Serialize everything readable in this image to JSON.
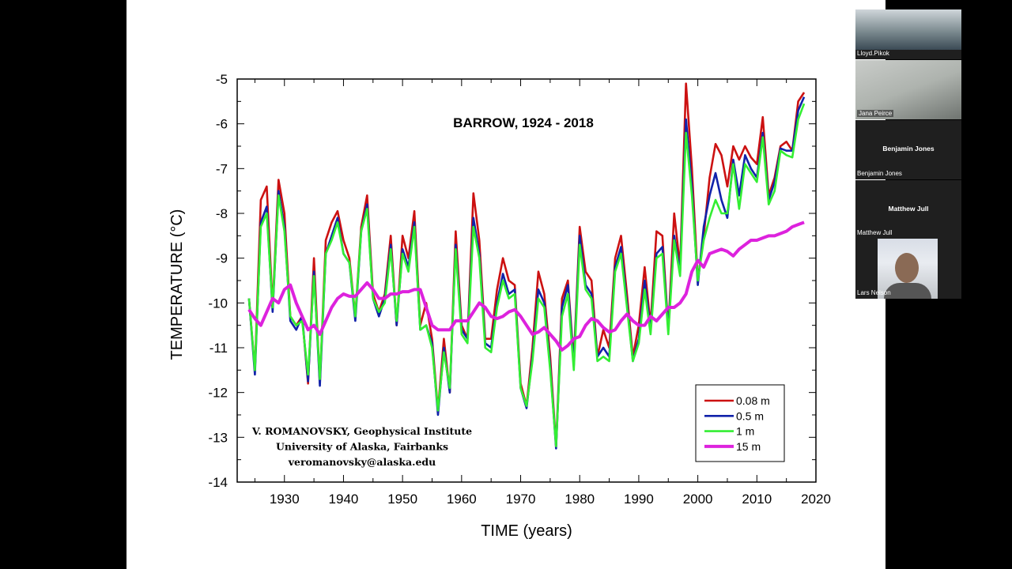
{
  "chart_data": {
    "type": "line",
    "title": "BARROW, 1924 - 2018",
    "xlabel": "TIME (years)",
    "ylabel": "TEMPERATURE (°C)",
    "xlim": [
      1922,
      2020
    ],
    "ylim": [
      -14,
      -5
    ],
    "x_ticks": [
      1930,
      1940,
      1950,
      1960,
      1970,
      1980,
      1990,
      2000,
      2010,
      2020
    ],
    "y_ticks": [
      -5,
      -6,
      -7,
      -8,
      -9,
      -10,
      -11,
      -12,
      -13,
      -14
    ],
    "grid": false,
    "legend_position": "bottom-right",
    "x_start": 1924,
    "credit": [
      "V. ROMANOVSKY, Geophysical Institute",
      "University of Alaska, Fairbanks",
      "veromanovsky@alaska.edu"
    ],
    "series": [
      {
        "name": "0.08 m",
        "color": "#cc1111",
        "values": [
          -9.9,
          -11.5,
          -7.7,
          -7.4,
          -10.1,
          -7.25,
          -8.0,
          -10.3,
          -10.5,
          -10.3,
          -11.8,
          -9.0,
          -11.8,
          -8.6,
          -8.2,
          -7.95,
          -8.6,
          -9.0,
          -10.3,
          -8.3,
          -7.6,
          -9.8,
          -10.2,
          -9.8,
          -8.5,
          -10.5,
          -8.5,
          -9.0,
          -7.95,
          -10.5,
          -10.0,
          -10.8,
          -12.4,
          -10.8,
          -12.0,
          -8.4,
          -10.5,
          -10.8,
          -7.55,
          -8.6,
          -10.8,
          -10.8,
          -9.7,
          -9.0,
          -9.5,
          -9.6,
          -11.8,
          -12.3,
          -11.0,
          -9.3,
          -9.8,
          -11.2,
          -13.2,
          -9.9,
          -9.5,
          -11.3,
          -8.3,
          -9.3,
          -9.5,
          -11.2,
          -10.6,
          -11.0,
          -9.0,
          -8.5,
          -9.8,
          -11.2,
          -10.5,
          -9.2,
          -10.5,
          -8.4,
          -8.5,
          -10.6,
          -8.0,
          -9.2,
          -5.1,
          -7.0,
          -9.5,
          -8.5,
          -7.2,
          -6.45,
          -6.7,
          -7.4,
          -6.5,
          -6.8,
          -6.5,
          -6.75,
          -6.9,
          -5.85,
          -7.6,
          -7.2,
          -6.5,
          -6.4,
          -6.6,
          -5.5,
          -5.3
        ]
      },
      {
        "name": "0.5 m",
        "color": "#1122aa",
        "values": [
          -9.9,
          -11.6,
          -8.2,
          -7.85,
          -10.2,
          -7.5,
          -8.3,
          -10.4,
          -10.6,
          -10.3,
          -11.75,
          -9.3,
          -11.85,
          -8.9,
          -8.5,
          -8.1,
          -8.9,
          -9.1,
          -10.4,
          -8.4,
          -7.8,
          -9.9,
          -10.3,
          -9.9,
          -8.7,
          -10.5,
          -8.8,
          -9.2,
          -8.2,
          -10.6,
          -10.5,
          -10.9,
          -12.5,
          -11.0,
          -12.0,
          -8.7,
          -10.6,
          -10.8,
          -8.1,
          -8.9,
          -10.9,
          -11.0,
          -10.0,
          -9.35,
          -9.8,
          -9.7,
          -11.9,
          -12.35,
          -11.2,
          -9.7,
          -10.0,
          -11.4,
          -13.25,
          -10.1,
          -9.6,
          -11.4,
          -8.5,
          -9.6,
          -9.8,
          -11.2,
          -11.0,
          -11.2,
          -9.2,
          -8.75,
          -10.0,
          -11.3,
          -10.8,
          -9.5,
          -10.6,
          -8.9,
          -8.75,
          -10.6,
          -8.5,
          -9.3,
          -5.9,
          -7.4,
          -9.6,
          -8.3,
          -7.6,
          -7.1,
          -7.7,
          -8.1,
          -6.8,
          -7.6,
          -6.7,
          -7.0,
          -7.2,
          -6.2,
          -7.7,
          -7.3,
          -6.55,
          -6.6,
          -6.6,
          -5.7,
          -5.4
        ]
      },
      {
        "name": "1 m",
        "color": "#33ee33",
        "values": [
          -9.9,
          -11.5,
          -8.3,
          -8.0,
          -10.1,
          -7.6,
          -8.4,
          -10.3,
          -10.5,
          -10.4,
          -11.6,
          -9.4,
          -11.7,
          -8.9,
          -8.6,
          -8.2,
          -8.9,
          -9.1,
          -10.3,
          -8.4,
          -7.9,
          -9.9,
          -10.2,
          -10.0,
          -8.8,
          -10.4,
          -8.9,
          -9.3,
          -8.3,
          -10.6,
          -10.5,
          -11.0,
          -12.4,
          -11.1,
          -11.9,
          -8.8,
          -10.7,
          -10.9,
          -8.3,
          -9.0,
          -11.0,
          -11.1,
          -10.1,
          -9.5,
          -9.9,
          -9.8,
          -11.9,
          -12.3,
          -11.3,
          -9.9,
          -10.1,
          -11.5,
          -13.2,
          -10.3,
          -9.8,
          -11.5,
          -8.7,
          -9.7,
          -9.9,
          -11.3,
          -11.2,
          -11.3,
          -9.3,
          -8.9,
          -10.1,
          -11.3,
          -10.9,
          -9.7,
          -10.7,
          -9.0,
          -8.9,
          -10.7,
          -8.6,
          -9.4,
          -6.2,
          -7.6,
          -9.5,
          -8.6,
          -8.1,
          -7.7,
          -8.0,
          -8.0,
          -6.9,
          -7.9,
          -6.9,
          -7.1,
          -7.3,
          -6.3,
          -7.8,
          -7.5,
          -6.6,
          -6.7,
          -6.75,
          -5.9,
          -5.55
        ]
      },
      {
        "name": "15 m",
        "color": "#dd22dd",
        "values": [
          -10.15,
          -10.35,
          -10.5,
          -10.2,
          -9.9,
          -10.0,
          -9.7,
          -9.6,
          -10.0,
          -10.3,
          -10.6,
          -10.5,
          -10.7,
          -10.4,
          -10.1,
          -9.9,
          -9.8,
          -9.85,
          -9.85,
          -9.7,
          -9.55,
          -9.7,
          -9.9,
          -9.9,
          -9.8,
          -9.8,
          -9.75,
          -9.75,
          -9.7,
          -9.7,
          -10.1,
          -10.5,
          -10.6,
          -10.6,
          -10.6,
          -10.4,
          -10.4,
          -10.4,
          -10.2,
          -10.0,
          -10.1,
          -10.3,
          -10.35,
          -10.3,
          -10.2,
          -10.15,
          -10.3,
          -10.5,
          -10.7,
          -10.65,
          -10.55,
          -10.7,
          -10.85,
          -11.05,
          -10.95,
          -10.8,
          -10.75,
          -10.5,
          -10.35,
          -10.4,
          -10.55,
          -10.65,
          -10.6,
          -10.4,
          -10.25,
          -10.4,
          -10.5,
          -10.5,
          -10.3,
          -10.4,
          -10.25,
          -10.1,
          -10.1,
          -10.0,
          -9.8,
          -9.3,
          -9.05,
          -9.2,
          -8.9,
          -8.85,
          -8.8,
          -8.85,
          -8.95,
          -8.8,
          -8.7,
          -8.6,
          -8.6,
          -8.55,
          -8.5,
          -8.5,
          -8.45,
          -8.4,
          -8.3,
          -8.25,
          -8.2
        ]
      }
    ]
  },
  "participants": [
    {
      "name": "Lloyd.Pikok",
      "video": true
    },
    {
      "name": "Jana Peirce",
      "video": true
    },
    {
      "name": "Benjamin Jones",
      "video": false
    },
    {
      "name": "Matthew Jull",
      "video": false
    },
    {
      "name": "Lars Nelson",
      "video": true
    }
  ]
}
